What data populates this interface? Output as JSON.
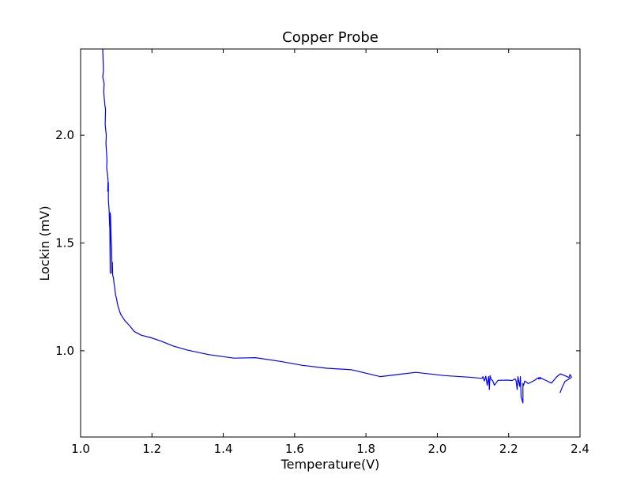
{
  "chart_data": {
    "type": "line",
    "title": "Copper Probe",
    "xlabel": "Temperature(V)",
    "ylabel": "Lockin (mV)",
    "xlim": [
      1.0,
      2.4
    ],
    "ylim": [
      0.6,
      2.4
    ],
    "grid": false,
    "xticks": [
      1.0,
      1.2,
      1.4,
      1.6,
      1.8,
      2.0,
      2.2,
      2.4
    ],
    "xtick_labels": [
      "1.0",
      "1.2",
      "1.4",
      "1.6",
      "1.8",
      "2.0",
      "2.2",
      "2.4"
    ],
    "yticks": [
      1.0,
      1.5,
      2.0
    ],
    "ytick_labels": [
      "1.0",
      "1.5",
      "2.0"
    ],
    "series": [
      {
        "color": "#0000ff",
        "x": [
          1.062,
          1.064,
          1.062,
          1.066,
          1.065,
          1.068,
          1.07,
          1.069,
          1.072,
          1.071,
          1.073,
          1.074,
          1.073,
          1.075,
          1.077,
          1.076,
          1.078,
          1.078,
          1.08,
          1.081,
          1.082,
          1.083,
          1.083,
          1.084,
          1.085,
          1.086,
          1.087,
          1.088,
          1.089,
          1.09,
          1.092,
          1.094,
          1.096,
          1.098,
          1.101,
          1.103,
          1.106,
          1.108,
          1.112,
          1.118,
          1.124,
          1.138,
          1.15,
          1.17,
          1.195,
          1.225,
          1.26,
          1.3,
          1.36,
          1.43,
          1.49,
          1.56,
          1.62,
          1.69,
          1.76,
          1.84,
          1.94,
          2.02,
          2.085,
          2.115,
          2.125,
          2.128,
          2.132,
          2.136,
          2.14,
          2.144,
          2.146,
          2.148,
          2.151,
          2.155,
          2.16,
          2.17,
          2.195,
          2.21,
          2.218,
          2.221,
          2.224,
          2.226,
          2.228,
          2.231,
          2.233,
          2.235,
          2.24,
          2.24,
          2.242,
          2.245,
          2.255,
          2.272,
          2.282,
          2.29,
          2.284,
          2.292,
          2.305,
          2.32,
          2.335,
          2.345,
          2.36,
          2.369,
          2.372,
          2.374,
          2.376,
          2.372,
          2.358,
          2.35,
          2.344
        ],
        "y": [
          2.4,
          2.3,
          2.27,
          2.24,
          2.2,
          2.14,
          2.12,
          2.05,
          2.0,
          1.96,
          1.91,
          1.88,
          1.85,
          1.82,
          1.79,
          1.74,
          1.78,
          1.7,
          1.65,
          1.59,
          1.57,
          1.36,
          1.64,
          1.62,
          1.55,
          1.5,
          1.48,
          1.36,
          1.41,
          1.35,
          1.34,
          1.31,
          1.29,
          1.26,
          1.24,
          1.22,
          1.2,
          1.19,
          1.17,
          1.155,
          1.14,
          1.115,
          1.09,
          1.072,
          1.062,
          1.045,
          1.022,
          1.003,
          0.982,
          0.966,
          0.968,
          0.951,
          0.933,
          0.919,
          0.912,
          0.88,
          0.9,
          0.885,
          0.878,
          0.874,
          0.872,
          0.88,
          0.86,
          0.882,
          0.84,
          0.88,
          0.82,
          0.885,
          0.866,
          0.862,
          0.84,
          0.863,
          0.864,
          0.862,
          0.87,
          0.86,
          0.82,
          0.88,
          0.86,
          0.835,
          0.88,
          0.786,
          0.758,
          0.848,
          0.84,
          0.86,
          0.848,
          0.862,
          0.874,
          0.876,
          0.87,
          0.872,
          0.862,
          0.85,
          0.88,
          0.893,
          0.883,
          0.876,
          0.89,
          0.884,
          0.878,
          0.872,
          0.858,
          0.83,
          0.805
        ]
      }
    ]
  }
}
